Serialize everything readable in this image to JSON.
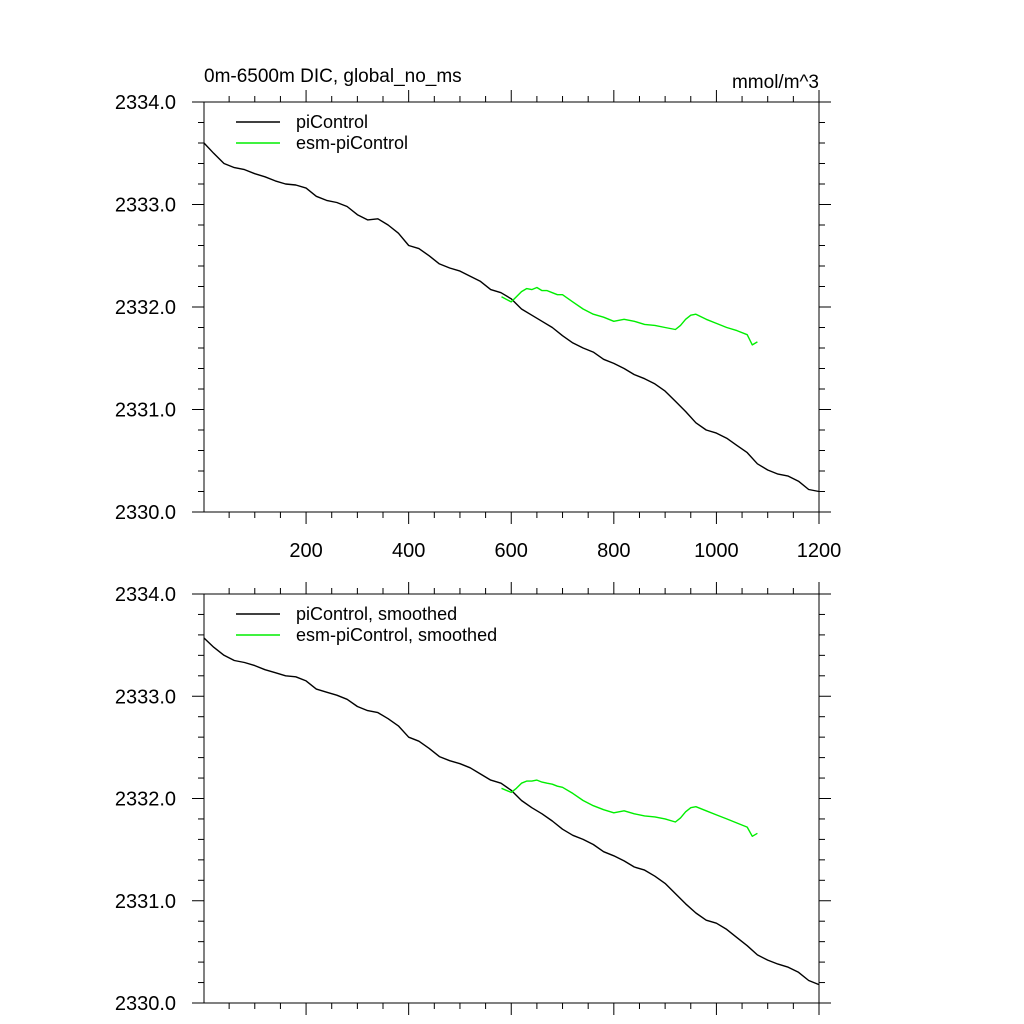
{
  "chart_data": [
    {
      "type": "line",
      "title": "0m-6500m DIC, global_no_ms",
      "units": "mmol/m^3",
      "xlim": [
        1,
        1200
      ],
      "ylim": [
        2330.0,
        2334.0
      ],
      "x_ticks": [
        200,
        400,
        600,
        800,
        1000,
        1200
      ],
      "y_ticks": [
        "2330.0",
        "2331.0",
        "2332.0",
        "2333.0",
        "2334.0"
      ],
      "legend_position": "top-left",
      "series": [
        {
          "name": "piControl",
          "color": "#000000",
          "x": [
            1,
            20,
            40,
            60,
            80,
            100,
            120,
            140,
            160,
            180,
            200,
            220,
            240,
            260,
            280,
            300,
            320,
            340,
            360,
            380,
            400,
            420,
            440,
            460,
            480,
            500,
            520,
            540,
            560,
            580,
            600,
            620,
            640,
            660,
            680,
            700,
            720,
            740,
            760,
            780,
            800,
            820,
            840,
            860,
            880,
            900,
            920,
            940,
            960,
            980,
            1000,
            1020,
            1040,
            1060,
            1080,
            1100,
            1120,
            1140,
            1160,
            1180,
            1200
          ],
          "y": [
            2333.6,
            2333.5,
            2333.4,
            2333.36,
            2333.34,
            2333.3,
            2333.27,
            2333.23,
            2333.2,
            2333.19,
            2333.16,
            2333.08,
            2333.04,
            2333.02,
            2332.98,
            2332.9,
            2332.85,
            2332.86,
            2332.8,
            2332.72,
            2332.6,
            2332.57,
            2332.5,
            2332.42,
            2332.38,
            2332.35,
            2332.3,
            2332.25,
            2332.17,
            2332.14,
            2332.08,
            2331.98,
            2331.92,
            2331.86,
            2331.8,
            2331.72,
            2331.65,
            2331.6,
            2331.56,
            2331.49,
            2331.45,
            2331.4,
            2331.34,
            2331.3,
            2331.25,
            2331.18,
            2331.08,
            2330.98,
            2330.87,
            2330.8,
            2330.77,
            2330.72,
            2330.65,
            2330.58,
            2330.47,
            2330.41,
            2330.37,
            2330.35,
            2330.3,
            2330.22,
            2330.2
          ]
        },
        {
          "name": "esm-piControl",
          "color": "#00ee00",
          "x": [
            581,
            600,
            610,
            620,
            630,
            640,
            650,
            660,
            670,
            680,
            690,
            700,
            720,
            740,
            760,
            780,
            800,
            820,
            840,
            860,
            880,
            900,
            920,
            930,
            940,
            950,
            960,
            980,
            1000,
            1020,
            1040,
            1060,
            1070,
            1080
          ],
          "y": [
            2332.1,
            2332.05,
            2332.1,
            2332.15,
            2332.18,
            2332.17,
            2332.19,
            2332.16,
            2332.16,
            2332.14,
            2332.12,
            2332.12,
            2332.05,
            2331.98,
            2331.93,
            2331.9,
            2331.86,
            2331.88,
            2331.86,
            2331.83,
            2331.82,
            2331.8,
            2331.78,
            2331.82,
            2331.88,
            2331.92,
            2331.93,
            2331.88,
            2331.84,
            2331.8,
            2331.77,
            2331.73,
            2331.63,
            2331.66
          ]
        }
      ]
    },
    {
      "type": "line",
      "title": "",
      "xlim": [
        1,
        1200
      ],
      "ylim": [
        2330.0,
        2334.0
      ],
      "y_ticks": [
        "2330.0",
        "2331.0",
        "2332.0",
        "2333.0",
        "2334.0"
      ],
      "legend_position": "top-left",
      "series": [
        {
          "name": "piControl, smoothed",
          "color": "#000000",
          "x": [
            1,
            20,
            40,
            60,
            80,
            100,
            120,
            140,
            160,
            180,
            200,
            220,
            240,
            260,
            280,
            300,
            320,
            340,
            360,
            380,
            400,
            420,
            440,
            460,
            480,
            500,
            520,
            540,
            560,
            580,
            600,
            620,
            640,
            660,
            680,
            700,
            720,
            740,
            760,
            780,
            800,
            820,
            840,
            860,
            880,
            900,
            920,
            940,
            960,
            980,
            1000,
            1020,
            1040,
            1060,
            1080,
            1100,
            1120,
            1140,
            1160,
            1180,
            1200
          ],
          "y": [
            2333.57,
            2333.48,
            2333.4,
            2333.35,
            2333.33,
            2333.3,
            2333.26,
            2333.23,
            2333.2,
            2333.19,
            2333.15,
            2333.07,
            2333.04,
            2333.01,
            2332.97,
            2332.9,
            2332.86,
            2332.84,
            2332.78,
            2332.71,
            2332.6,
            2332.56,
            2332.49,
            2332.41,
            2332.37,
            2332.34,
            2332.3,
            2332.24,
            2332.18,
            2332.15,
            2332.08,
            2331.98,
            2331.91,
            2331.85,
            2331.78,
            2331.7,
            2331.64,
            2331.6,
            2331.55,
            2331.48,
            2331.44,
            2331.39,
            2331.33,
            2331.3,
            2331.24,
            2331.17,
            2331.07,
            2330.97,
            2330.88,
            2330.81,
            2330.78,
            2330.72,
            2330.64,
            2330.56,
            2330.47,
            2330.42,
            2330.38,
            2330.35,
            2330.3,
            2330.22,
            2330.18
          ]
        },
        {
          "name": "esm-piControl, smoothed",
          "color": "#00ee00",
          "x": [
            581,
            600,
            610,
            620,
            630,
            640,
            650,
            660,
            670,
            680,
            690,
            700,
            720,
            740,
            760,
            780,
            800,
            820,
            840,
            860,
            880,
            900,
            920,
            930,
            940,
            950,
            960,
            980,
            1000,
            1020,
            1040,
            1060,
            1070,
            1080
          ],
          "y": [
            2332.1,
            2332.06,
            2332.1,
            2332.15,
            2332.17,
            2332.17,
            2332.18,
            2332.16,
            2332.15,
            2332.14,
            2332.12,
            2332.11,
            2332.05,
            2331.98,
            2331.93,
            2331.89,
            2331.86,
            2331.88,
            2331.85,
            2331.83,
            2331.82,
            2331.8,
            2331.77,
            2331.81,
            2331.87,
            2331.91,
            2331.92,
            2331.88,
            2331.84,
            2331.8,
            2331.76,
            2331.72,
            2331.63,
            2331.66
          ]
        }
      ]
    }
  ]
}
